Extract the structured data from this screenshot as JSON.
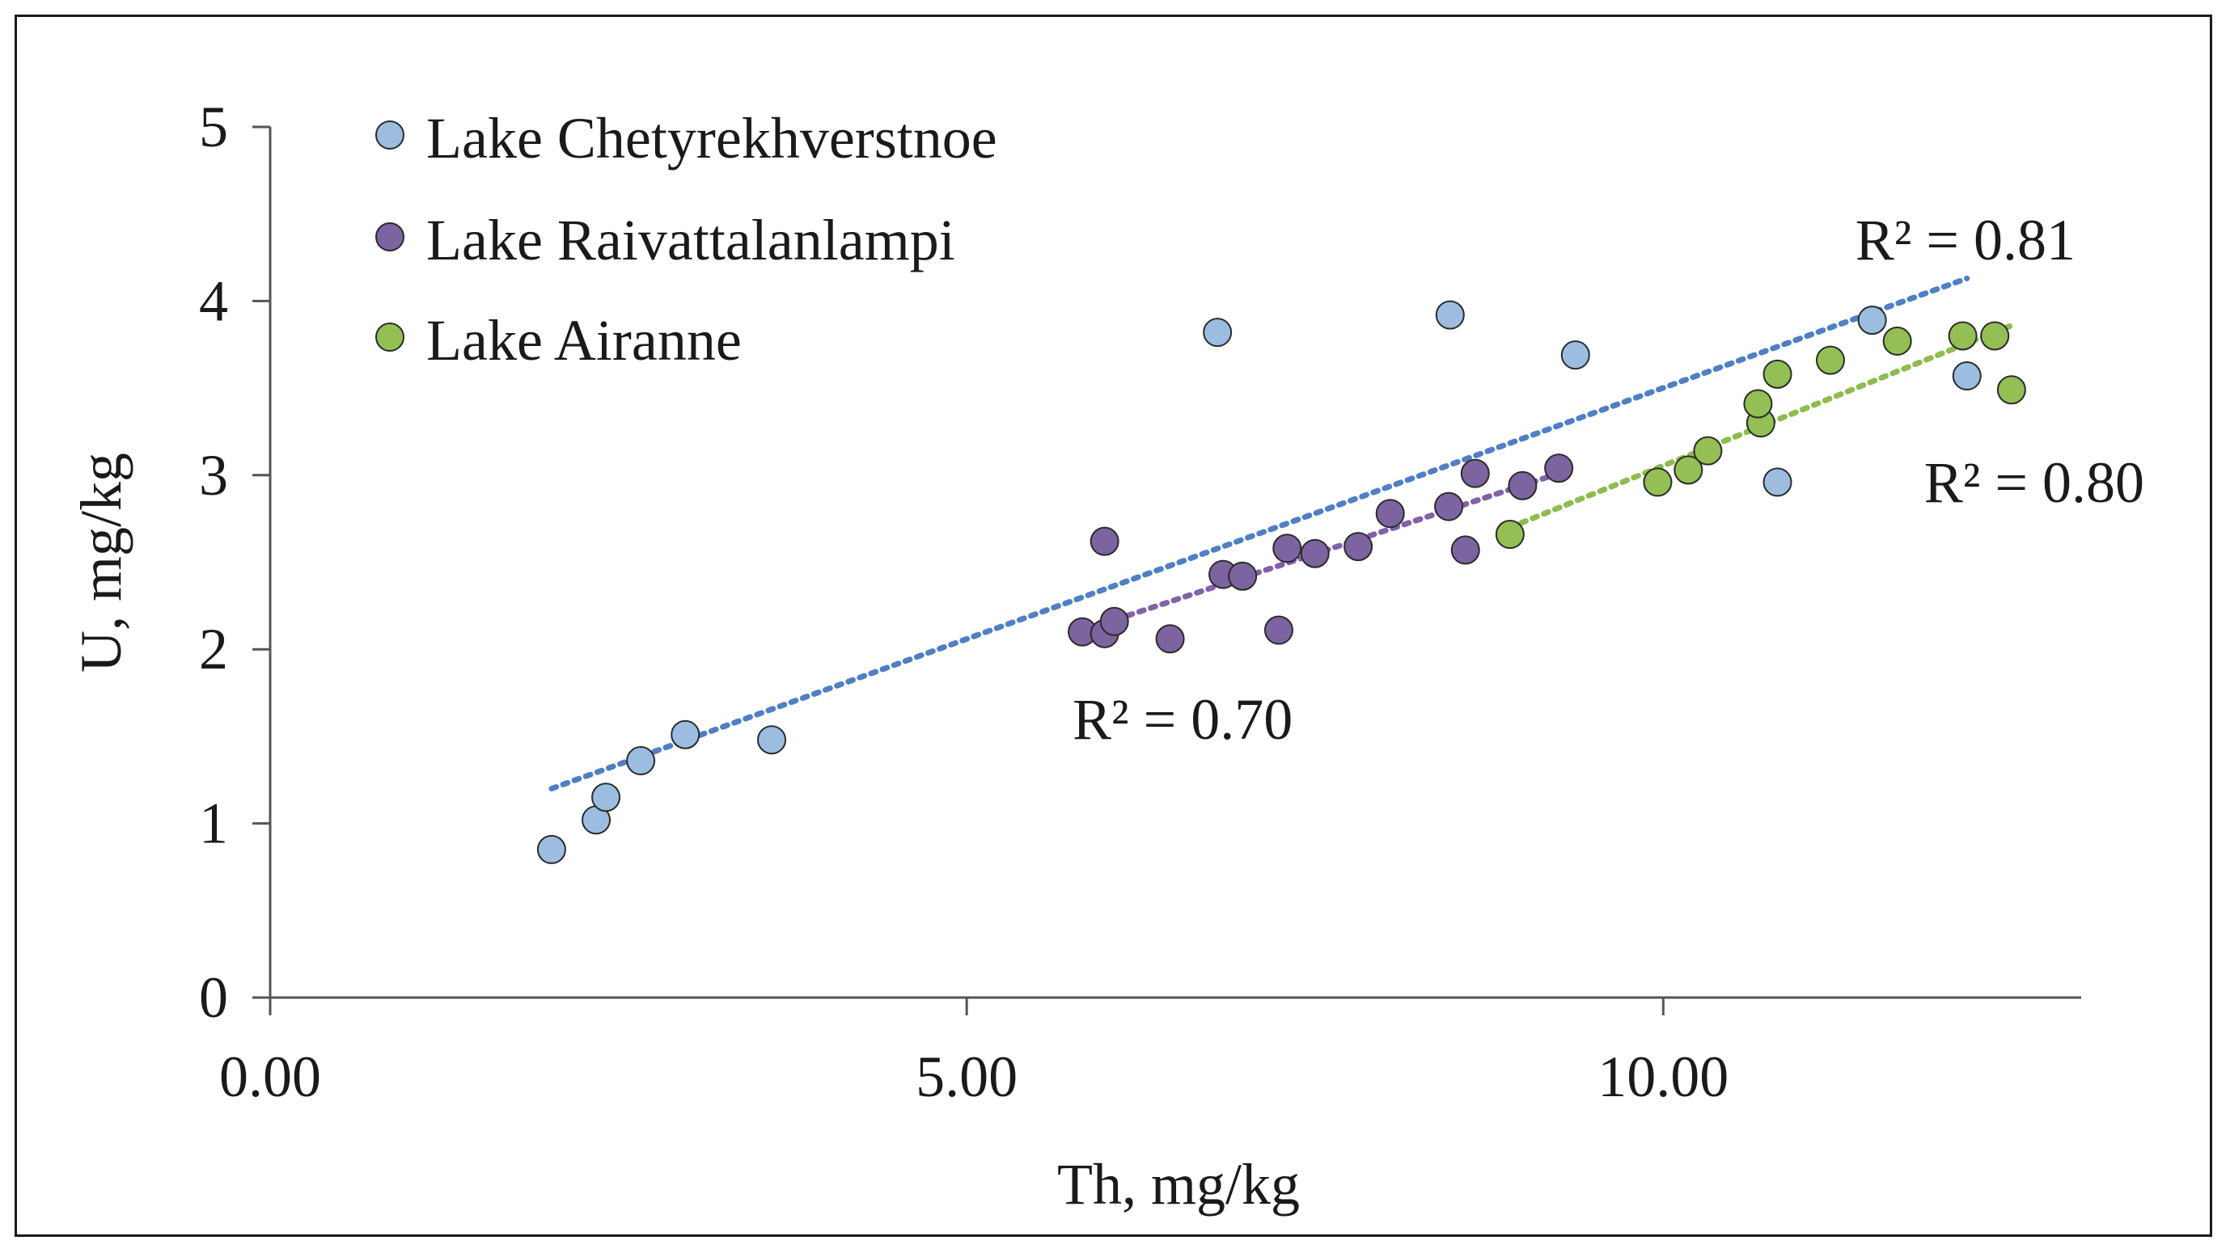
{
  "chart_data": {
    "type": "scatter",
    "xlabel": "Th, mg/kg",
    "ylabel": "U, mg/kg",
    "xlim": [
      0,
      13
    ],
    "ylim": [
      0,
      5
    ],
    "x_ticks": [
      "0.00",
      "5.00",
      "10.00"
    ],
    "x_tick_values": [
      0,
      5,
      10
    ],
    "y_ticks": [
      "0",
      "1",
      "2",
      "3",
      "4",
      "5"
    ],
    "y_tick_values": [
      0,
      1,
      2,
      3,
      4,
      5
    ],
    "grid": false,
    "legend_position": "top-left",
    "series": [
      {
        "name": "Lake Chetyrekhverstnoe",
        "color": "#9dbde0",
        "points": [
          [
            2.02,
            0.85
          ],
          [
            2.34,
            1.02
          ],
          [
            2.41,
            1.15
          ],
          [
            2.66,
            1.36
          ],
          [
            2.98,
            1.51
          ],
          [
            3.6,
            1.48
          ],
          [
            6.8,
            3.82
          ],
          [
            8.47,
            3.92
          ],
          [
            9.37,
            3.69
          ],
          [
            11.5,
            3.89
          ],
          [
            12.18,
            3.57
          ],
          [
            10.82,
            2.96
          ]
        ],
        "trendline": {
          "x": [
            2.02,
            12.18
          ],
          "y": [
            1.2,
            4.13
          ],
          "label": "R² = 0.81"
        }
      },
      {
        "name": "Lake Raivattalanlampi",
        "color": "#7c64a0",
        "points": [
          [
            5.83,
            2.1
          ],
          [
            5.99,
            2.62
          ],
          [
            5.99,
            2.09
          ],
          [
            6.06,
            2.16
          ],
          [
            6.46,
            2.06
          ],
          [
            6.84,
            2.43
          ],
          [
            6.98,
            2.42
          ],
          [
            7.24,
            2.11
          ],
          [
            7.3,
            2.58
          ],
          [
            7.5,
            2.55
          ],
          [
            7.81,
            2.59
          ],
          [
            8.04,
            2.78
          ],
          [
            8.46,
            2.82
          ],
          [
            8.65,
            3.01
          ],
          [
            8.58,
            2.57
          ],
          [
            8.99,
            2.94
          ],
          [
            9.25,
            3.04
          ]
        ],
        "trendline": {
          "x": [
            5.99,
            9.25
          ],
          "y": [
            2.15,
            3.01
          ],
          "label": "R² = 0.70"
        }
      },
      {
        "name": "Lake Airanne",
        "color": "#93bf55",
        "points": [
          [
            8.9,
            2.66
          ],
          [
            9.96,
            2.96
          ],
          [
            10.18,
            3.03
          ],
          [
            10.32,
            3.14
          ],
          [
            10.7,
            3.3
          ],
          [
            10.68,
            3.41
          ],
          [
            10.82,
            3.58
          ],
          [
            11.2,
            3.66
          ],
          [
            11.68,
            3.77
          ],
          [
            12.15,
            3.8
          ],
          [
            12.38,
            3.8
          ],
          [
            12.5,
            3.49
          ]
        ],
        "trendline": {
          "x": [
            8.9,
            12.5
          ],
          "y": [
            2.7,
            3.86
          ],
          "label": "R² = 0.80"
        }
      }
    ]
  }
}
